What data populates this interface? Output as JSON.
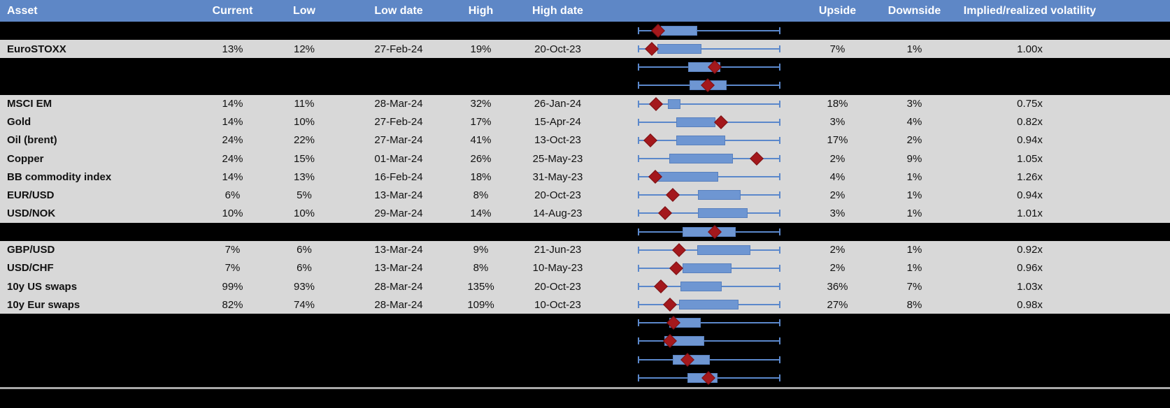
{
  "header": {
    "asset": "Asset",
    "current": "Current",
    "low": "Low",
    "low_date": "Low date",
    "high": "High",
    "high_date": "High date",
    "upside": "Upside",
    "downside": "Downside",
    "iv_rv": "Implied/realized volatility"
  },
  "colors": {
    "header_bg": "#5E87C6",
    "row_gray": "#D8D8D8",
    "row_black": "#000000",
    "box_fill": "#6E96D2",
    "box_border": "#5880BE",
    "whisker": "#5B88CB",
    "marker_fill": "#A4181C",
    "marker_border": "#7A1013",
    "separator": "#A8A8A8"
  },
  "chart_data": {
    "type": "boxplot",
    "orientation": "horizontal",
    "note": "Each row shows a horizontal box-and-whisker plot normalized to that asset's low-high volatility range (0 = low, 1 = high); the red diamond marks the current level. Rows with redacted=true are blacked-out rows whose text is hidden but whose plot is visible.",
    "rows": [
      {
        "redacted": true,
        "asset": "",
        "current": "",
        "low": "",
        "low_date": "",
        "high": "",
        "high_date": "",
        "upside": "",
        "downside": "",
        "iv_rv": "",
        "box": [
          0.162,
          0.417
        ],
        "marker": 0.142
      },
      {
        "redacted": false,
        "asset": "EuroSTOXX",
        "current": "13%",
        "low": "12%",
        "low_date": "27-Feb-24",
        "high": "19%",
        "high_date": "20-Oct-23",
        "upside": "7%",
        "downside": "1%",
        "iv_rv": "1.00x",
        "box": [
          0.137,
          0.446
        ],
        "marker": 0.098
      },
      {
        "redacted": true,
        "asset": "",
        "current": "",
        "low": "",
        "low_date": "",
        "high": "",
        "high_date": "",
        "upside": "",
        "downside": "",
        "iv_rv": "",
        "box": [
          0.353,
          0.578
        ],
        "marker": 0.539
      },
      {
        "redacted": true,
        "asset": "",
        "current": "",
        "low": "",
        "low_date": "",
        "high": "",
        "high_date": "",
        "upside": "",
        "downside": "",
        "iv_rv": "",
        "box": [
          0.363,
          0.623
        ],
        "marker": 0.489
      },
      {
        "redacted": false,
        "asset": "MSCI EM",
        "current": "14%",
        "low": "11%",
        "low_date": "28-Mar-24",
        "high": "32%",
        "high_date": "26-Jan-24",
        "upside": "18%",
        "downside": "3%",
        "iv_rv": "0.75x",
        "box": [
          0.211,
          0.298
        ],
        "marker": 0.126
      },
      {
        "redacted": false,
        "asset": "Gold",
        "current": "14%",
        "low": "10%",
        "low_date": "27-Feb-24",
        "high": "17%",
        "high_date": "15-Apr-24",
        "upside": "3%",
        "downside": "4%",
        "iv_rv": "0.82x",
        "box": [
          0.268,
          0.543
        ],
        "marker": 0.582
      },
      {
        "redacted": false,
        "asset": "Oil (brent)",
        "current": "24%",
        "low": "22%",
        "low_date": "27-Mar-24",
        "high": "41%",
        "high_date": "13-Oct-23",
        "upside": "17%",
        "downside": "2%",
        "iv_rv": "0.94x",
        "box": [
          0.27,
          0.611
        ],
        "marker": 0.088
      },
      {
        "redacted": false,
        "asset": "Copper",
        "current": "24%",
        "low": "15%",
        "low_date": "01-Mar-24",
        "high": "26%",
        "high_date": "25-May-23",
        "upside": "2%",
        "downside": "9%",
        "iv_rv": "1.05x",
        "box": [
          0.222,
          0.668
        ],
        "marker": 0.832
      },
      {
        "redacted": false,
        "asset": "BB commodity index",
        "current": "14%",
        "low": "13%",
        "low_date": "16-Feb-24",
        "high": "18%",
        "high_date": "31-May-23",
        "upside": "4%",
        "downside": "1%",
        "iv_rv": "1.26x",
        "box": [
          0.137,
          0.565
        ],
        "marker": 0.124
      },
      {
        "redacted": false,
        "asset": "EUR/USD",
        "current": "6%",
        "low": "5%",
        "low_date": "13-Mar-24",
        "high": "8%",
        "high_date": "20-Oct-23",
        "upside": "2%",
        "downside": "1%",
        "iv_rv": "0.94x",
        "box": [
          0.423,
          0.722
        ],
        "marker": 0.244
      },
      {
        "redacted": false,
        "asset": "USD/NOK",
        "current": "10%",
        "low": "10%",
        "low_date": "29-Mar-24",
        "high": "14%",
        "high_date": "14-Aug-23",
        "upside": "3%",
        "downside": "1%",
        "iv_rv": "1.01x",
        "box": [
          0.42,
          0.771
        ],
        "marker": 0.19
      },
      {
        "redacted": true,
        "asset": "",
        "current": "",
        "low": "",
        "low_date": "",
        "high": "",
        "high_date": "",
        "upside": "",
        "downside": "",
        "iv_rv": "",
        "box": [
          0.314,
          0.685
        ],
        "marker": 0.538
      },
      {
        "redacted": false,
        "asset": "GBP/USD",
        "current": "7%",
        "low": "6%",
        "low_date": "13-Mar-24",
        "high": "9%",
        "high_date": "21-Jun-23",
        "upside": "2%",
        "downside": "1%",
        "iv_rv": "0.92x",
        "box": [
          0.415,
          0.791
        ],
        "marker": 0.288
      },
      {
        "redacted": false,
        "asset": "USD/CHF",
        "current": "7%",
        "low": "6%",
        "low_date": "13-Mar-24",
        "high": "8%",
        "high_date": "10-May-23",
        "upside": "2%",
        "downside": "1%",
        "iv_rv": "0.96x",
        "box": [
          0.314,
          0.657
        ],
        "marker": 0.268
      },
      {
        "redacted": false,
        "asset": "10y US swaps",
        "current": "99%",
        "low": "93%",
        "low_date": "28-Mar-24",
        "high": "135%",
        "high_date": "20-Oct-23",
        "upside": "36%",
        "downside": "7%",
        "iv_rv": "1.03x",
        "box": [
          0.298,
          0.587
        ],
        "marker": 0.162
      },
      {
        "redacted": false,
        "asset": "10y Eur swaps",
        "current": "82%",
        "low": "74%",
        "low_date": "28-Mar-24",
        "high": "109%",
        "high_date": "10-Oct-23",
        "upside": "27%",
        "downside": "8%",
        "iv_rv": "0.98x",
        "box": [
          0.289,
          0.704
        ],
        "marker": 0.224
      },
      {
        "redacted": true,
        "asset": "",
        "current": "",
        "low": "",
        "low_date": "",
        "high": "",
        "high_date": "",
        "upside": "",
        "downside": "",
        "iv_rv": "",
        "box": [
          0.219,
          0.443
        ],
        "marker": 0.252
      },
      {
        "redacted": true,
        "asset": "",
        "current": "",
        "low": "",
        "low_date": "",
        "high": "",
        "high_date": "",
        "upside": "",
        "downside": "",
        "iv_rv": "",
        "box": [
          0.186,
          0.467
        ],
        "marker": 0.227
      },
      {
        "redacted": true,
        "asset": "",
        "current": "",
        "low": "",
        "low_date": "",
        "high": "",
        "high_date": "",
        "upside": "",
        "downside": "",
        "iv_rv": "",
        "box": [
          0.244,
          0.505
        ],
        "marker": 0.35
      },
      {
        "redacted": true,
        "asset": "",
        "current": "",
        "low": "",
        "low_date": "",
        "high": "",
        "high_date": "",
        "upside": "",
        "downside": "",
        "iv_rv": "",
        "box": [
          0.347,
          0.559
        ],
        "marker": 0.497
      }
    ]
  }
}
